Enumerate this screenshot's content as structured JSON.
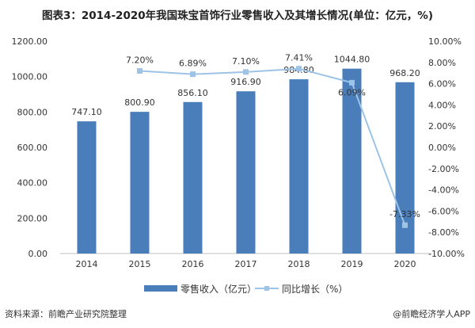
{
  "chart_data": {
    "type": "bar+line",
    "title": "图表3：2014-2020年我国珠宝首饰行业零售收入及其增长情况(单位：亿元，%)",
    "categories": [
      "2014",
      "2015",
      "2016",
      "2017",
      "2018",
      "2019",
      "2020"
    ],
    "series": [
      {
        "name": "零售收入（亿元）",
        "type": "bar",
        "axis": "left",
        "color": "#4a7ebb",
        "values": [
          747.1,
          800.9,
          856.1,
          916.9,
          984.8,
          1044.8,
          968.2
        ],
        "labels": [
          "747.10",
          "800.90",
          "856.10",
          "916.90",
          "984.80",
          "1044.80",
          "968.20"
        ]
      },
      {
        "name": "同比增长（%）",
        "type": "line",
        "axis": "right",
        "color": "#9dc3e6",
        "values": [
          null,
          7.2,
          6.89,
          7.1,
          7.41,
          6.09,
          -7.33
        ],
        "labels": [
          "",
          "7.20%",
          "6.89%",
          "7.10%",
          "7.41%",
          "6.09%",
          "-7.33%"
        ]
      }
    ],
    "y_left": {
      "lim": [
        0,
        1200
      ],
      "ticks": [
        "0.00",
        "200.00",
        "400.00",
        "600.00",
        "800.00",
        "1000.00",
        "1200.00"
      ]
    },
    "y_right": {
      "lim": [
        -10,
        10
      ],
      "ticks": [
        "-10.00%",
        "-8.00%",
        "-6.00%",
        "-4.00%",
        "-2.00%",
        "0.00%",
        "2.00%",
        "4.00%",
        "6.00%",
        "8.00%",
        "10.00%"
      ]
    },
    "grid": false,
    "legend": "bottom"
  },
  "footer": {
    "source": "资料来源：前瞻产业研究院整理",
    "credit": "@前瞻经济学人APP"
  }
}
